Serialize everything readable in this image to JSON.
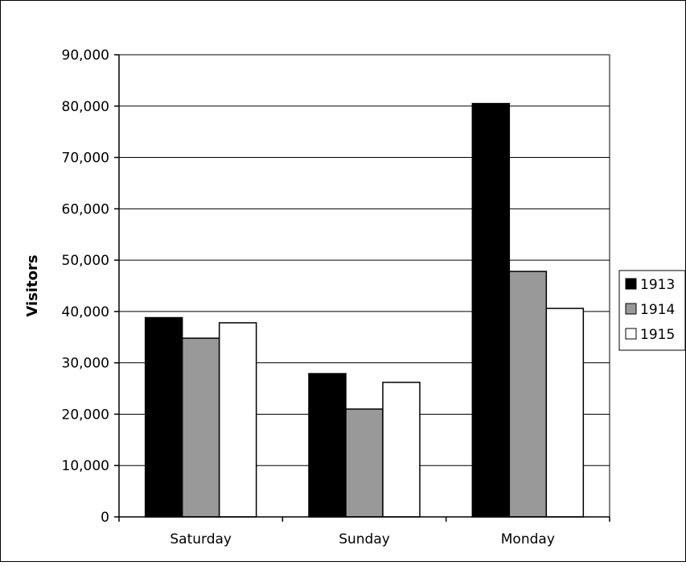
{
  "chart_data": {
    "type": "bar",
    "title": "",
    "xlabel": "",
    "ylabel": "Visitors",
    "categories": [
      "Saturday",
      "Sunday",
      "Monday"
    ],
    "ylim": [
      0,
      90000
    ],
    "yticks": [
      0,
      10000,
      20000,
      30000,
      40000,
      50000,
      60000,
      70000,
      80000,
      90000
    ],
    "ytick_labels": [
      "0",
      "10,000",
      "20,000",
      "30,000",
      "40,000",
      "50,000",
      "60,000",
      "70,000",
      "80,000",
      "90,000"
    ],
    "grid": "horizontal",
    "legend": "right",
    "series": [
      {
        "name": "1913",
        "color": "#000000",
        "values": [
          38800,
          27900,
          80500
        ]
      },
      {
        "name": "1914",
        "color": "#999999",
        "values": [
          34800,
          21000,
          47800
        ]
      },
      {
        "name": "1915",
        "color": "#ffffff",
        "values": [
          37800,
          26200,
          40600
        ]
      }
    ]
  }
}
